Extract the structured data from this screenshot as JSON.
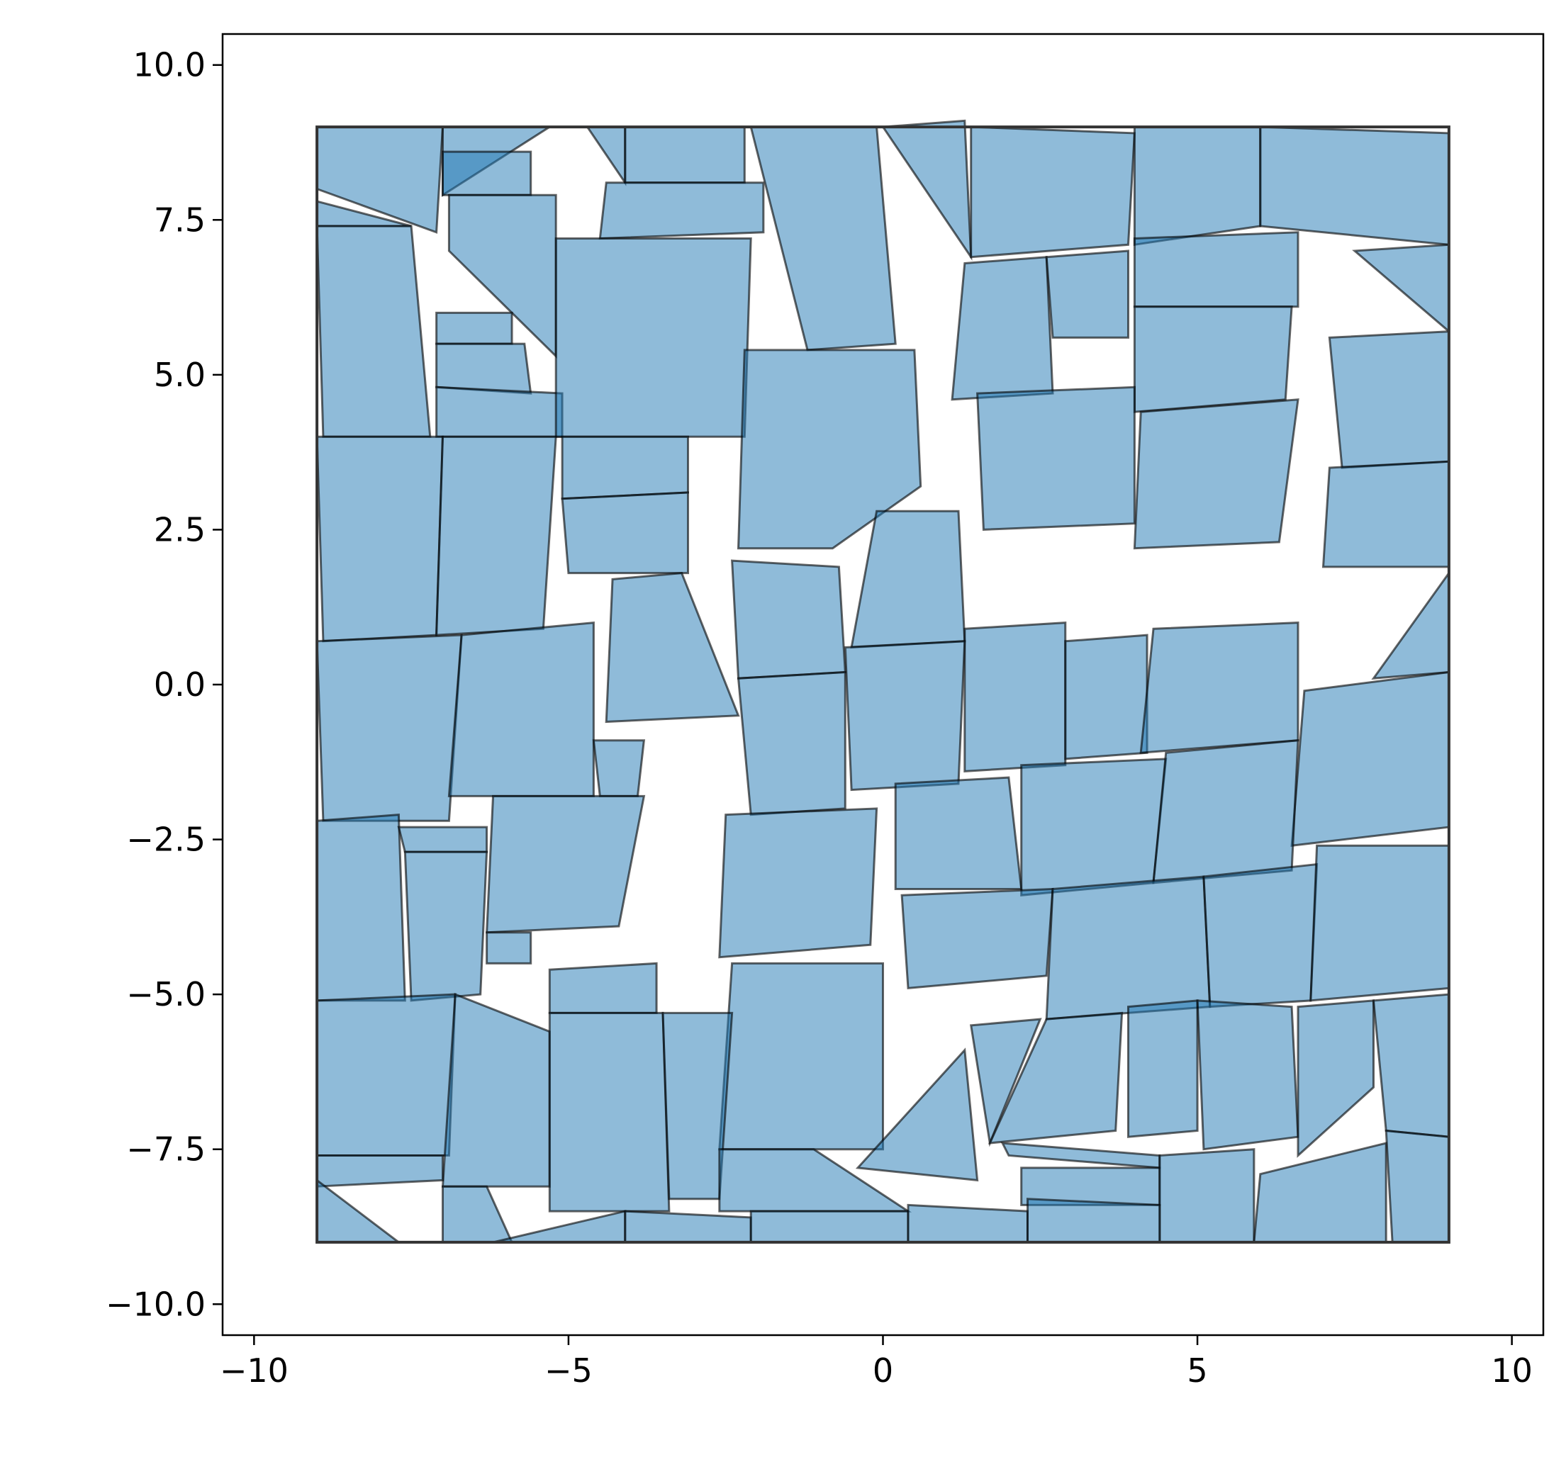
{
  "chart_data": {
    "type": "polygon-packing",
    "title": "",
    "xlabel": "",
    "ylabel": "",
    "xlim": [
      -10.5,
      10.5
    ],
    "ylim": [
      -10.5,
      10.5
    ],
    "xticks": [
      -10,
      -5,
      0,
      5,
      10
    ],
    "yticks": [
      -10,
      -7.5,
      -5,
      -2.5,
      0,
      2.5,
      5,
      7.5,
      10
    ],
    "xtick_labels": [
      "−10",
      "−5",
      "0",
      "5",
      "10"
    ],
    "ytick_labels": [
      "−10.0",
      "−7.5",
      "−5.0",
      "−2.5",
      "0.0",
      "2.5",
      "5.0",
      "7.5",
      "10.0"
    ],
    "grid": false,
    "colors": {
      "fill": "#1f77b4",
      "edge": "#000000",
      "boundary": "#333333"
    },
    "boundary": [
      [
        -9,
        -9
      ],
      [
        9,
        -9
      ],
      [
        9,
        9
      ],
      [
        -9,
        9
      ]
    ],
    "polygons": [
      [
        [
          -9,
          9
        ],
        [
          -7,
          9
        ],
        [
          -7.1,
          7.3
        ],
        [
          -9,
          8
        ]
      ],
      [
        [
          -7,
          9
        ],
        [
          -5.3,
          9
        ],
        [
          -7,
          7.9
        ]
      ],
      [
        [
          -7,
          8.6
        ],
        [
          -5.6,
          8.6
        ],
        [
          -5.6,
          7.9
        ],
        [
          -7,
          7.9
        ]
      ],
      [
        [
          -9,
          7.8
        ],
        [
          -7.5,
          7.4
        ],
        [
          -9,
          7.4
        ]
      ],
      [
        [
          -4.7,
          9
        ],
        [
          -4.1,
          9
        ],
        [
          -4.1,
          8.1
        ]
      ],
      [
        [
          -4.1,
          9
        ],
        [
          -2.2,
          9
        ],
        [
          -2.2,
          8.1
        ],
        [
          -4.1,
          8.1
        ]
      ],
      [
        [
          -4.4,
          8.1
        ],
        [
          -1.9,
          8.1
        ],
        [
          -1.9,
          7.3
        ],
        [
          -4.5,
          7.2
        ]
      ],
      [
        [
          -6.9,
          7.9
        ],
        [
          -5.2,
          7.9
        ],
        [
          -5.2,
          5.3
        ],
        [
          -6.9,
          7
        ]
      ],
      [
        [
          -2.1,
          9
        ],
        [
          -0.1,
          9
        ],
        [
          0.2,
          5.5
        ],
        [
          -1.2,
          5.4
        ]
      ],
      [
        [
          0,
          9
        ],
        [
          1.3,
          9.1
        ],
        [
          1.4,
          6.9
        ]
      ],
      [
        [
          1.4,
          9
        ],
        [
          4,
          8.9
        ],
        [
          3.9,
          7.1
        ],
        [
          1.4,
          6.9
        ]
      ],
      [
        [
          4,
          9
        ],
        [
          6,
          9
        ],
        [
          6,
          7.4
        ],
        [
          4,
          7.1
        ]
      ],
      [
        [
          6,
          9
        ],
        [
          9,
          8.9
        ],
        [
          9,
          7.1
        ],
        [
          6,
          7.4
        ]
      ],
      [
        [
          -9,
          7.4
        ],
        [
          -7.5,
          7.4
        ],
        [
          -7.2,
          4
        ],
        [
          -8.9,
          4
        ]
      ],
      [
        [
          -7.1,
          6
        ],
        [
          -5.9,
          6
        ],
        [
          -5.9,
          5.5
        ],
        [
          -7.1,
          5.5
        ]
      ],
      [
        [
          -7.1,
          5.5
        ],
        [
          -5.7,
          5.5
        ],
        [
          -5.6,
          4.7
        ],
        [
          -7.1,
          4.8
        ]
      ],
      [
        [
          -7.1,
          4.8
        ],
        [
          -5.1,
          4.7
        ],
        [
          -5.1,
          4
        ],
        [
          -7.1,
          4
        ]
      ],
      [
        [
          -5.2,
          7.2
        ],
        [
          -2.1,
          7.2
        ],
        [
          -2.2,
          4
        ],
        [
          -5.2,
          4
        ]
      ],
      [
        [
          -2.2,
          5.4
        ],
        [
          0.5,
          5.4
        ],
        [
          0.6,
          3.2
        ],
        [
          -0.8,
          2.2
        ],
        [
          -2.3,
          2.2
        ]
      ],
      [
        [
          1.3,
          6.8
        ],
        [
          2.6,
          6.9
        ],
        [
          2.7,
          4.7
        ],
        [
          1.1,
          4.6
        ]
      ],
      [
        [
          2.6,
          6.9
        ],
        [
          3.9,
          7
        ],
        [
          3.9,
          5.6
        ],
        [
          2.7,
          5.6
        ]
      ],
      [
        [
          4,
          7.2
        ],
        [
          6.6,
          7.3
        ],
        [
          6.6,
          6.1
        ],
        [
          4,
          6.1
        ]
      ],
      [
        [
          7.5,
          7
        ],
        [
          9,
          7.1
        ],
        [
          9,
          5.7
        ]
      ],
      [
        [
          4,
          6.1
        ],
        [
          6.5,
          6.1
        ],
        [
          6.4,
          4.6
        ],
        [
          4,
          4.4
        ]
      ],
      [
        [
          7.1,
          5.6
        ],
        [
          9,
          5.7
        ],
        [
          9,
          3.6
        ],
        [
          7.3,
          3.5
        ]
      ],
      [
        [
          1.5,
          4.7
        ],
        [
          4,
          4.8
        ],
        [
          4,
          2.6
        ],
        [
          1.6,
          2.5
        ]
      ],
      [
        [
          4.1,
          4.4
        ],
        [
          6.6,
          4.6
        ],
        [
          6.3,
          2.3
        ],
        [
          4,
          2.2
        ]
      ],
      [
        [
          7.1,
          3.5
        ],
        [
          9,
          3.6
        ],
        [
          9,
          1.9
        ],
        [
          7,
          1.9
        ]
      ],
      [
        [
          -9,
          4
        ],
        [
          -7,
          4
        ],
        [
          -7.1,
          0.8
        ],
        [
          -8.9,
          0.7
        ]
      ],
      [
        [
          -7,
          4
        ],
        [
          -5.2,
          4
        ],
        [
          -5.4,
          0.9
        ],
        [
          -7.1,
          0.8
        ]
      ],
      [
        [
          -5.1,
          4
        ],
        [
          -3.1,
          4
        ],
        [
          -3.1,
          3.1
        ],
        [
          -5.1,
          3
        ]
      ],
      [
        [
          -5.1,
          3
        ],
        [
          -3.1,
          3.1
        ],
        [
          -3.1,
          1.8
        ],
        [
          -5,
          1.8
        ]
      ],
      [
        [
          -4.3,
          1.7
        ],
        [
          -3.2,
          1.8
        ],
        [
          -2.3,
          -0.5
        ],
        [
          -4.4,
          -0.6
        ]
      ],
      [
        [
          -2.4,
          2
        ],
        [
          -0.7,
          1.9
        ],
        [
          -0.6,
          0.2
        ],
        [
          -2.3,
          0.1
        ]
      ],
      [
        [
          -0.1,
          2.8
        ],
        [
          1.2,
          2.8
        ],
        [
          1.3,
          0.7
        ],
        [
          -0.5,
          0.6
        ]
      ],
      [
        [
          1.3,
          0.9
        ],
        [
          2.9,
          1
        ],
        [
          2.9,
          -1.3
        ],
        [
          1.3,
          -1.4
        ]
      ],
      [
        [
          2.9,
          0.7
        ],
        [
          4.2,
          0.8
        ],
        [
          4.2,
          -1.1
        ],
        [
          2.9,
          -1.2
        ]
      ],
      [
        [
          4.3,
          0.9
        ],
        [
          6.6,
          1
        ],
        [
          6.6,
          -0.9
        ],
        [
          4.1,
          -1.1
        ]
      ],
      [
        [
          7.8,
          0.1
        ],
        [
          9,
          1.8
        ],
        [
          9,
          0.2
        ]
      ],
      [
        [
          -9,
          0.7
        ],
        [
          -6.7,
          0.8
        ],
        [
          -6.9,
          -2.2
        ],
        [
          -8.9,
          -2.2
        ]
      ],
      [
        [
          -6.7,
          0.8
        ],
        [
          -4.6,
          1
        ],
        [
          -4.6,
          -1.8
        ],
        [
          -6.9,
          -1.8
        ]
      ],
      [
        [
          -4.6,
          -0.9
        ],
        [
          -3.8,
          -0.9
        ],
        [
          -3.9,
          -1.8
        ],
        [
          -4.5,
          -1.8
        ]
      ],
      [
        [
          -2.3,
          0.1
        ],
        [
          -0.6,
          0.2
        ],
        [
          -0.6,
          -2
        ],
        [
          -2.1,
          -2.1
        ]
      ],
      [
        [
          -0.6,
          0.6
        ],
        [
          1.3,
          0.7
        ],
        [
          1.2,
          -1.6
        ],
        [
          -0.5,
          -1.7
        ]
      ],
      [
        [
          6.7,
          -0.1
        ],
        [
          9,
          0.2
        ],
        [
          9,
          -2.3
        ],
        [
          6.5,
          -2.6
        ]
      ],
      [
        [
          -9,
          -2.2
        ],
        [
          -7.7,
          -2.1
        ],
        [
          -7.6,
          -5.1
        ],
        [
          -9,
          -5.1
        ]
      ],
      [
        [
          -7.7,
          -2.3
        ],
        [
          -6.3,
          -2.3
        ],
        [
          -6.3,
          -2.7
        ],
        [
          -7.6,
          -2.7
        ]
      ],
      [
        [
          -7.6,
          -2.7
        ],
        [
          -6.3,
          -2.7
        ],
        [
          -6.4,
          -5
        ],
        [
          -7.5,
          -5.1
        ]
      ],
      [
        [
          -6.2,
          -1.8
        ],
        [
          -3.8,
          -1.8
        ],
        [
          -4.2,
          -3.9
        ],
        [
          -6.3,
          -4
        ]
      ],
      [
        [
          -6.3,
          -4
        ],
        [
          -5.6,
          -4
        ],
        [
          -5.6,
          -4.5
        ],
        [
          -6.3,
          -4.5
        ]
      ],
      [
        [
          -2.5,
          -2.1
        ],
        [
          -0.1,
          -2
        ],
        [
          -0.2,
          -4.2
        ],
        [
          -2.6,
          -4.4
        ]
      ],
      [
        [
          0.2,
          -1.6
        ],
        [
          2,
          -1.5
        ],
        [
          2.2,
          -3.3
        ],
        [
          0.2,
          -3.3
        ]
      ],
      [
        [
          2.2,
          -1.3
        ],
        [
          4.5,
          -1.2
        ],
        [
          4.3,
          -3.2
        ],
        [
          2.2,
          -3.4
        ]
      ],
      [
        [
          4.5,
          -1.1
        ],
        [
          6.6,
          -0.9
        ],
        [
          6.5,
          -3
        ],
        [
          4.3,
          -3.2
        ]
      ],
      [
        [
          0.3,
          -3.4
        ],
        [
          2.7,
          -3.3
        ],
        [
          2.6,
          -4.7
        ],
        [
          0.4,
          -4.9
        ]
      ],
      [
        [
          2.7,
          -3.3
        ],
        [
          5.1,
          -3.1
        ],
        [
          5.2,
          -5.2
        ],
        [
          2.6,
          -5.4
        ]
      ],
      [
        [
          5.1,
          -3.1
        ],
        [
          6.9,
          -2.9
        ],
        [
          6.8,
          -5.1
        ],
        [
          5.2,
          -5.2
        ]
      ],
      [
        [
          6.9,
          -2.6
        ],
        [
          9,
          -2.6
        ],
        [
          9,
          -4.9
        ],
        [
          6.8,
          -5.1
        ]
      ],
      [
        [
          -5.3,
          -4.6
        ],
        [
          -3.6,
          -4.5
        ],
        [
          -3.6,
          -5.3
        ],
        [
          -5.3,
          -5.3
        ]
      ],
      [
        [
          -2.4,
          -4.5
        ],
        [
          0,
          -4.5
        ],
        [
          0,
          -7.5
        ],
        [
          -2.6,
          -7.5
        ]
      ],
      [
        [
          -9,
          -5.1
        ],
        [
          -6.8,
          -5
        ],
        [
          -6.9,
          -7.6
        ],
        [
          -9,
          -7.6
        ]
      ],
      [
        [
          -6.8,
          -5
        ],
        [
          -5.3,
          -5.6
        ],
        [
          -5.3,
          -8.1
        ],
        [
          -7,
          -8.1
        ]
      ],
      [
        [
          -5.3,
          -5.3
        ],
        [
          -3.5,
          -5.3
        ],
        [
          -3.4,
          -8.5
        ],
        [
          -5.3,
          -8.5
        ]
      ],
      [
        [
          -3.5,
          -5.3
        ],
        [
          -2.4,
          -5.3
        ],
        [
          -2.6,
          -8.3
        ],
        [
          -3.4,
          -8.3
        ]
      ],
      [
        [
          1.4,
          -5.5
        ],
        [
          2.5,
          -5.4
        ],
        [
          1.7,
          -7.4
        ]
      ],
      [
        [
          2.6,
          -5.4
        ],
        [
          3.8,
          -5.3
        ],
        [
          3.7,
          -7.2
        ],
        [
          1.7,
          -7.4
        ]
      ],
      [
        [
          3.9,
          -5.2
        ],
        [
          5,
          -5.1
        ],
        [
          5,
          -7.2
        ],
        [
          3.9,
          -7.3
        ]
      ],
      [
        [
          5,
          -5.1
        ],
        [
          6.5,
          -5.2
        ],
        [
          6.6,
          -7.3
        ],
        [
          5.1,
          -7.5
        ]
      ],
      [
        [
          6.6,
          -5.2
        ],
        [
          7.8,
          -5.1
        ],
        [
          7.8,
          -6.5
        ],
        [
          6.6,
          -7.6
        ]
      ],
      [
        [
          7.8,
          -5.1
        ],
        [
          9,
          -5
        ],
        [
          9,
          -7.3
        ],
        [
          8,
          -7.2
        ]
      ],
      [
        [
          1.3,
          -5.9
        ],
        [
          1.5,
          -8
        ],
        [
          -0.4,
          -7.8
        ]
      ],
      [
        [
          -2.6,
          -7.5
        ],
        [
          -1.1,
          -7.5
        ],
        [
          0.4,
          -8.5
        ],
        [
          -2.6,
          -8.5
        ]
      ],
      [
        [
          1.9,
          -7.4
        ],
        [
          4.4,
          -7.6
        ],
        [
          4.4,
          -7.8
        ],
        [
          2,
          -7.6
        ]
      ],
      [
        [
          2.2,
          -7.8
        ],
        [
          4.4,
          -7.8
        ],
        [
          4.4,
          -8.4
        ],
        [
          2.2,
          -8.4
        ]
      ],
      [
        [
          4.4,
          -7.6
        ],
        [
          5.9,
          -7.5
        ],
        [
          5.9,
          -9
        ],
        [
          4.4,
          -9
        ]
      ],
      [
        [
          6,
          -7.9
        ],
        [
          8,
          -7.4
        ],
        [
          8,
          -9
        ],
        [
          5.9,
          -9
        ]
      ],
      [
        [
          8,
          -7.2
        ],
        [
          9,
          -7.3
        ],
        [
          9,
          -9
        ],
        [
          8.1,
          -9
        ]
      ],
      [
        [
          -9,
          -7.6
        ],
        [
          -7,
          -7.6
        ],
        [
          -7,
          -8
        ],
        [
          -9,
          -8.1
        ]
      ],
      [
        [
          -9,
          -8
        ],
        [
          -7.7,
          -9
        ],
        [
          -9,
          -9
        ]
      ],
      [
        [
          -7,
          -8.1
        ],
        [
          -6.3,
          -8.1
        ],
        [
          -5.9,
          -9
        ],
        [
          -7,
          -9
        ]
      ],
      [
        [
          -6.2,
          -9
        ],
        [
          -4.1,
          -8.5
        ],
        [
          -4.1,
          -9
        ]
      ],
      [
        [
          -4.1,
          -8.5
        ],
        [
          -2.1,
          -8.6
        ],
        [
          -2.1,
          -9
        ],
        [
          -4.1,
          -9
        ]
      ],
      [
        [
          -2.1,
          -8.5
        ],
        [
          0.4,
          -8.5
        ],
        [
          0.4,
          -9
        ],
        [
          -2.1,
          -9
        ]
      ],
      [
        [
          0.4,
          -8.4
        ],
        [
          2.3,
          -8.5
        ],
        [
          2.3,
          -9
        ],
        [
          0.4,
          -9
        ]
      ],
      [
        [
          2.3,
          -8.3
        ],
        [
          4.4,
          -8.4
        ],
        [
          4.4,
          -9
        ],
        [
          2.3,
          -9
        ]
      ]
    ]
  }
}
